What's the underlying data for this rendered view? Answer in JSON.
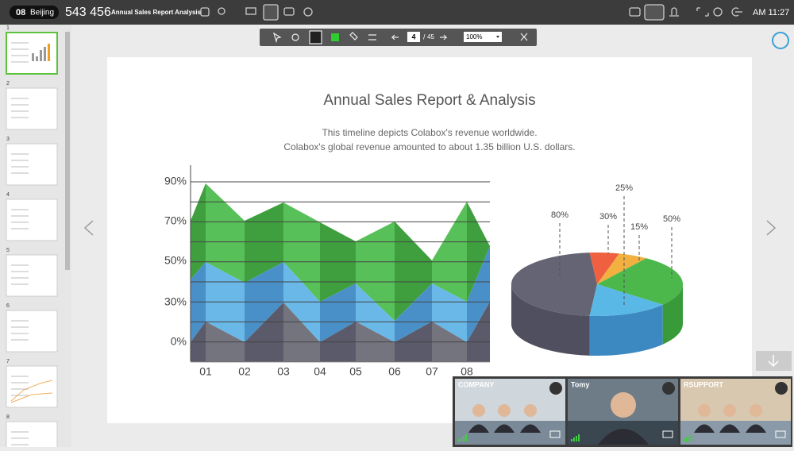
{
  "top_bar": {
    "room_badge": "08",
    "city": "Beijing",
    "room_number": "543 456",
    "document_title": "Annual Sales Report Analysis",
    "clock": "AM 11:27"
  },
  "toolbar": {
    "current_page": "4",
    "separator": "/",
    "total_pages": "45",
    "zoom": "100%"
  },
  "thumbnails": [
    "1",
    "2",
    "3",
    "4",
    "5",
    "6",
    "7",
    "8"
  ],
  "slide": {
    "title": "Annual Sales Report & Analysis",
    "subtitle": [
      "This timeline depicts Colabox's revenue worldwide.",
      "Colabox's global revenue amounted to about 1.35 billion U.S. dollars."
    ],
    "y_axis_labels": [
      "90%",
      "70%",
      "50%",
      "30%",
      "0%"
    ],
    "x_axis_labels": [
      "01",
      "02",
      "03",
      "04",
      "05",
      "06",
      "07",
      "08"
    ],
    "pie_labels": [
      "80%",
      "30%",
      "25%",
      "15%",
      "50%"
    ]
  },
  "video_tiles": [
    "COMPANY",
    "Tomy",
    "RSUPPORT"
  ]
}
